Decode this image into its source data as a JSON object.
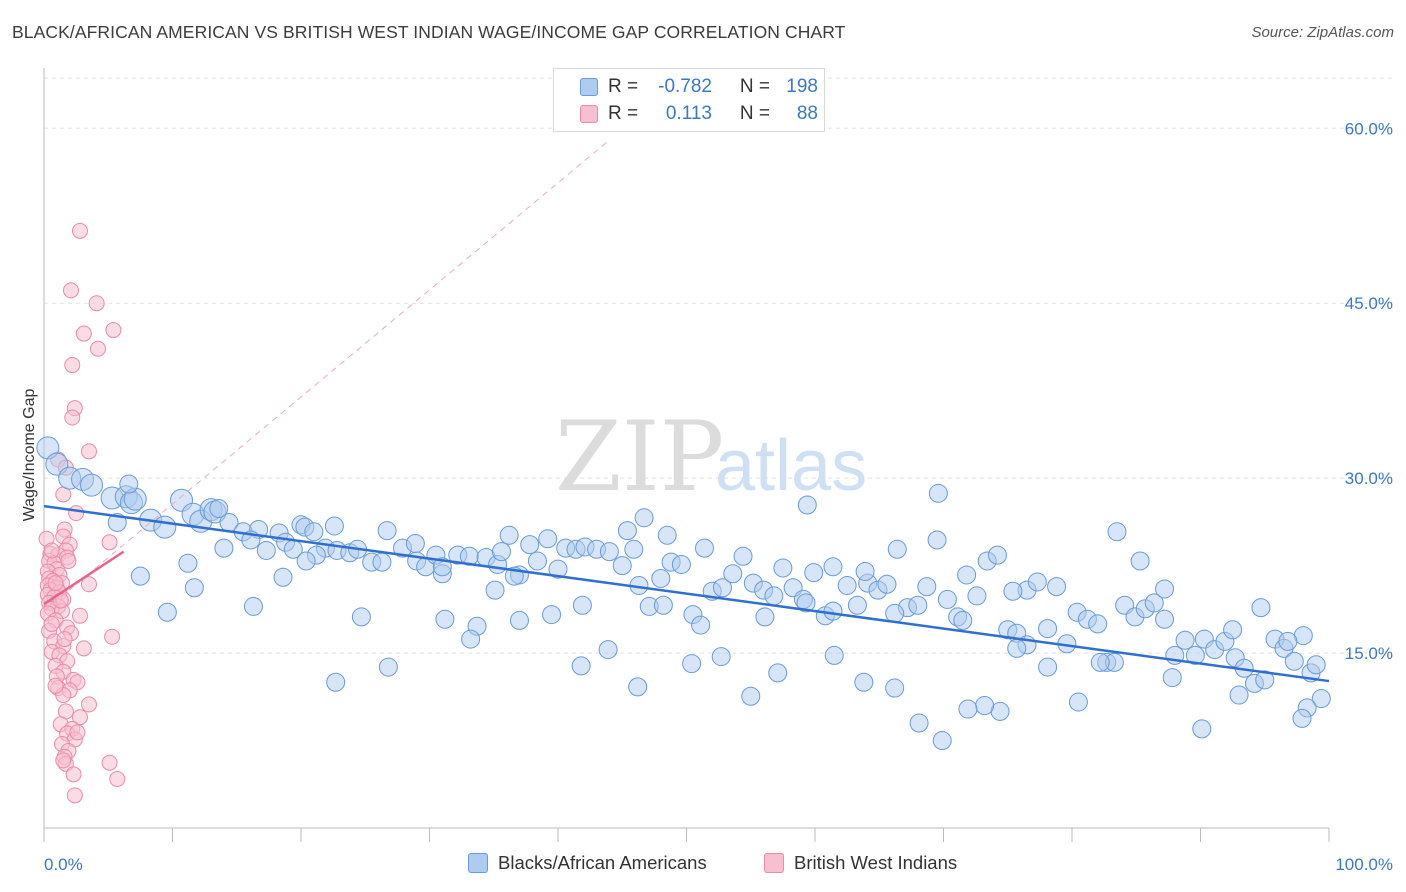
{
  "header": {
    "title": "BLACK/AFRICAN AMERICAN VS BRITISH WEST INDIAN WAGE/INCOME GAP CORRELATION CHART",
    "source": "Source: ZipAtlas.com"
  },
  "watermark": {
    "zip": "ZIP",
    "atlas": "atlas"
  },
  "colors": {
    "blue_fill": "#aecbf0",
    "blue_stroke": "#6a9ad8",
    "blue_line": "#2f6fce",
    "pink_fill": "#f7bfd0",
    "pink_stroke": "#ec8aa8",
    "pink_line": "#e8628b",
    "axis_text": "#3b78c4"
  },
  "legend": {
    "rows": [
      {
        "r_label": "R =",
        "r_value": "-0.782",
        "n_label": "N =",
        "n_value": "198"
      },
      {
        "r_label": "R =",
        "r_value": "0.113",
        "n_label": "N =",
        "n_value": "88"
      }
    ]
  },
  "bottom_legend": {
    "series1": "Blacks/African Americans",
    "series2": "British West Indians"
  },
  "chart_data": {
    "type": "scatter",
    "xlabel": "",
    "ylabel": "Wage/Income Gap",
    "xlim": [
      0,
      100
    ],
    "ylim": [
      0,
      65
    ],
    "x_tick_labels": [
      "0.0%",
      "100.0%"
    ],
    "y_ticks": [
      15,
      30,
      45,
      60
    ],
    "y_tick_labels": [
      "15.0%",
      "30.0%",
      "45.0%",
      "60.0%"
    ],
    "grid": true,
    "legend_position": "top-center",
    "series": [
      {
        "name": "Blacks/African Americans",
        "r": -0.782,
        "n": 198,
        "trend": {
          "x": [
            0,
            100
          ],
          "y": [
            27.6,
            12.6
          ]
        },
        "points": [
          [
            0.3,
            32.6
          ],
          [
            1.0,
            31.2
          ],
          [
            2.0,
            30.0
          ],
          [
            3.0,
            29.9
          ],
          [
            3.7,
            29.4
          ],
          [
            5.3,
            28.3
          ],
          [
            6.4,
            28.4
          ],
          [
            8.3,
            26.4
          ],
          [
            6.8,
            27.9
          ],
          [
            7.1,
            28.2
          ],
          [
            9.4,
            25.8
          ],
          [
            10.7,
            28.1
          ],
          [
            11.6,
            26.9
          ],
          [
            12.2,
            26.3
          ],
          [
            13.0,
            27.3
          ],
          [
            13.3,
            27.1
          ],
          [
            14.4,
            26.2
          ],
          [
            15.5,
            25.4
          ],
          [
            16.7,
            25.6
          ],
          [
            17.3,
            23.8
          ],
          [
            18.3,
            25.3
          ],
          [
            18.8,
            24.5
          ],
          [
            19.4,
            23.9
          ],
          [
            20.0,
            26.0
          ],
          [
            20.3,
            25.8
          ],
          [
            21.0,
            25.4
          ],
          [
            21.9,
            24.0
          ],
          [
            22.8,
            23.8
          ],
          [
            23.8,
            23.6
          ],
          [
            24.4,
            23.9
          ],
          [
            25.5,
            22.8
          ],
          [
            26.3,
            22.8
          ],
          [
            27.9,
            24.0
          ],
          [
            29.0,
            22.9
          ],
          [
            29.7,
            22.4
          ],
          [
            30.5,
            23.4
          ],
          [
            31.0,
            21.8
          ],
          [
            32.2,
            23.4
          ],
          [
            33.1,
            23.3
          ],
          [
            34.4,
            23.2
          ],
          [
            35.3,
            22.6
          ],
          [
            35.6,
            23.7
          ],
          [
            36.2,
            25.1
          ],
          [
            37.0,
            21.7
          ],
          [
            37.8,
            24.3
          ],
          [
            38.4,
            22.9
          ],
          [
            39.2,
            24.8
          ],
          [
            40.0,
            22.2
          ],
          [
            40.6,
            24.0
          ],
          [
            41.4,
            23.9
          ],
          [
            42.1,
            24.1
          ],
          [
            43.0,
            23.9
          ],
          [
            44.0,
            23.7
          ],
          [
            45.0,
            22.5
          ],
          [
            45.4,
            25.5
          ],
          [
            45.9,
            23.9
          ],
          [
            47.1,
            19.0
          ],
          [
            48.0,
            21.4
          ],
          [
            48.8,
            22.8
          ],
          [
            49.6,
            22.6
          ],
          [
            50.5,
            18.3
          ],
          [
            51.4,
            24.0
          ],
          [
            52.0,
            20.3
          ],
          [
            52.8,
            20.6
          ],
          [
            53.6,
            21.8
          ],
          [
            54.4,
            23.3
          ],
          [
            55.2,
            21.0
          ],
          [
            56.0,
            20.4
          ],
          [
            56.8,
            19.9
          ],
          [
            57.5,
            22.3
          ],
          [
            58.3,
            20.6
          ],
          [
            59.1,
            19.6
          ],
          [
            59.9,
            21.9
          ],
          [
            60.8,
            18.2
          ],
          [
            61.4,
            22.4
          ],
          [
            62.5,
            20.8
          ],
          [
            63.3,
            19.1
          ],
          [
            64.1,
            21.0
          ],
          [
            64.9,
            20.4
          ],
          [
            65.6,
            20.9
          ],
          [
            66.4,
            23.9
          ],
          [
            67.2,
            18.9
          ],
          [
            68.0,
            19.1
          ],
          [
            68.7,
            20.7
          ],
          [
            69.5,
            24.7
          ],
          [
            70.3,
            19.6
          ],
          [
            71.1,
            18.1
          ],
          [
            71.8,
            21.7
          ],
          [
            72.6,
            19.9
          ],
          [
            73.4,
            22.9
          ],
          [
            74.2,
            23.4
          ],
          [
            75.0,
            17.0
          ],
          [
            75.7,
            16.7
          ],
          [
            76.5,
            20.4
          ],
          [
            77.3,
            21.1
          ],
          [
            78.1,
            17.1
          ],
          [
            78.8,
            20.7
          ],
          [
            79.6,
            15.8
          ],
          [
            80.4,
            18.5
          ],
          [
            81.2,
            17.9
          ],
          [
            82.0,
            17.5
          ],
          [
            82.7,
            14.2
          ],
          [
            83.3,
            14.2
          ],
          [
            84.1,
            19.1
          ],
          [
            84.9,
            18.1
          ],
          [
            85.7,
            18.8
          ],
          [
            86.4,
            19.3
          ],
          [
            87.2,
            17.9
          ],
          [
            88.0,
            14.8
          ],
          [
            88.8,
            16.1
          ],
          [
            89.6,
            14.8
          ],
          [
            90.3,
            16.2
          ],
          [
            91.1,
            15.3
          ],
          [
            91.9,
            16.0
          ],
          [
            92.7,
            14.6
          ],
          [
            93.4,
            13.7
          ],
          [
            94.2,
            12.4
          ],
          [
            95.0,
            12.7
          ],
          [
            95.8,
            16.2
          ],
          [
            96.5,
            15.4
          ],
          [
            97.3,
            14.3
          ],
          [
            98.0,
            16.5
          ],
          [
            98.6,
            13.3
          ],
          [
            99.0,
            14.0
          ],
          [
            99.4,
            11.1
          ],
          [
            5.7,
            26.2
          ],
          [
            11.2,
            22.7
          ],
          [
            16.1,
            24.7
          ],
          [
            21.2,
            23.4
          ],
          [
            26.7,
            25.5
          ],
          [
            31.0,
            22.4
          ],
          [
            36.6,
            21.6
          ],
          [
            41.9,
            19.1
          ],
          [
            46.3,
            20.8
          ],
          [
            51.1,
            17.4
          ],
          [
            56.1,
            18.1
          ],
          [
            61.4,
            18.6
          ],
          [
            66.2,
            18.4
          ],
          [
            71.5,
            17.8
          ],
          [
            76.5,
            15.7
          ],
          [
            82.2,
            14.2
          ],
          [
            87.8,
            12.9
          ],
          [
            93.0,
            11.4
          ],
          [
            98.3,
            10.3
          ],
          [
            6.6,
            29.5
          ],
          [
            13.6,
            27.4
          ],
          [
            22.6,
            25.9
          ],
          [
            33.7,
            17.3
          ],
          [
            46.7,
            26.6
          ],
          [
            48.5,
            25.1
          ],
          [
            59.4,
            27.7
          ],
          [
            63.9,
            22.0
          ],
          [
            69.6,
            28.7
          ],
          [
            75.4,
            20.3
          ],
          [
            83.5,
            25.4
          ],
          [
            85.3,
            22.9
          ],
          [
            92.5,
            17.0
          ],
          [
            94.7,
            18.9
          ],
          [
            96.8,
            16.0
          ],
          [
            97.9,
            9.4
          ],
          [
            90.1,
            8.5
          ],
          [
            87.2,
            20.5
          ],
          [
            80.5,
            10.8
          ],
          [
            78.1,
            13.8
          ],
          [
            75.7,
            15.4
          ],
          [
            74.4,
            10.0
          ],
          [
            73.2,
            10.5
          ],
          [
            71.9,
            10.2
          ],
          [
            69.9,
            7.5
          ],
          [
            68.1,
            9.0
          ],
          [
            66.2,
            12.0
          ],
          [
            63.8,
            12.5
          ],
          [
            61.5,
            14.8
          ],
          [
            59.3,
            19.3
          ],
          [
            57.1,
            13.3
          ],
          [
            55.0,
            11.3
          ],
          [
            52.7,
            14.7
          ],
          [
            50.4,
            14.1
          ],
          [
            48.2,
            19.1
          ],
          [
            46.2,
            12.1
          ],
          [
            43.9,
            15.3
          ],
          [
            41.8,
            13.9
          ],
          [
            39.5,
            18.3
          ],
          [
            37.0,
            17.8
          ],
          [
            35.1,
            20.4
          ],
          [
            33.2,
            16.2
          ],
          [
            31.2,
            17.9
          ],
          [
            28.9,
            24.4
          ],
          [
            26.8,
            13.8
          ],
          [
            24.7,
            18.1
          ],
          [
            22.7,
            12.5
          ],
          [
            20.4,
            22.9
          ],
          [
            18.6,
            21.5
          ],
          [
            16.3,
            19.0
          ],
          [
            14.0,
            24.0
          ],
          [
            11.7,
            20.6
          ],
          [
            9.6,
            18.5
          ],
          [
            7.5,
            21.6
          ]
        ]
      },
      {
        "name": "British West Indians",
        "r": 0.113,
        "n": 88,
        "trend": {
          "x": [
            0,
            6.2
          ],
          "y": [
            19.2,
            23.7
          ]
        },
        "points": [
          [
            2.8,
            51.2
          ],
          [
            2.1,
            46.1
          ],
          [
            4.1,
            45.0
          ],
          [
            3.1,
            42.4
          ],
          [
            5.4,
            42.7
          ],
          [
            4.2,
            41.1
          ],
          [
            2.2,
            39.7
          ],
          [
            2.4,
            36.0
          ],
          [
            2.2,
            35.2
          ],
          [
            3.5,
            32.3
          ],
          [
            1.1,
            31.6
          ],
          [
            1.7,
            30.9
          ],
          [
            1.5,
            28.6
          ],
          [
            2.5,
            27.0
          ],
          [
            1.6,
            25.6
          ],
          [
            1.5,
            25.0
          ],
          [
            0.2,
            24.8
          ],
          [
            2.0,
            24.3
          ],
          [
            5.1,
            24.5
          ],
          [
            1.7,
            23.8
          ],
          [
            0.5,
            23.5
          ],
          [
            1.1,
            23.4
          ],
          [
            1.8,
            23.2
          ],
          [
            0.4,
            22.9
          ],
          [
            0.8,
            22.7
          ],
          [
            1.0,
            22.2
          ],
          [
            0.3,
            22.0
          ],
          [
            1.2,
            21.7
          ],
          [
            0.4,
            21.4
          ],
          [
            0.7,
            21.2
          ],
          [
            1.4,
            21.0
          ],
          [
            0.3,
            20.8
          ],
          [
            1.0,
            20.6
          ],
          [
            3.5,
            20.9
          ],
          [
            0.5,
            20.4
          ],
          [
            1.2,
            20.2
          ],
          [
            0.3,
            20.0
          ],
          [
            0.8,
            19.8
          ],
          [
            1.5,
            19.6
          ],
          [
            0.4,
            19.3
          ],
          [
            1.1,
            19.0
          ],
          [
            0.6,
            18.8
          ],
          [
            0.3,
            18.4
          ],
          [
            1.4,
            18.6
          ],
          [
            2.8,
            18.2
          ],
          [
            0.9,
            17.8
          ],
          [
            1.8,
            17.2
          ],
          [
            0.4,
            16.9
          ],
          [
            2.1,
            16.7
          ],
          [
            5.3,
            16.4
          ],
          [
            0.8,
            16.0
          ],
          [
            1.5,
            15.6
          ],
          [
            3.1,
            15.4
          ],
          [
            0.6,
            15.1
          ],
          [
            1.2,
            14.8
          ],
          [
            1.8,
            14.3
          ],
          [
            0.9,
            13.9
          ],
          [
            1.5,
            13.4
          ],
          [
            1.0,
            13.0
          ],
          [
            2.3,
            12.7
          ],
          [
            2.6,
            12.5
          ],
          [
            1.1,
            12.0
          ],
          [
            2.0,
            11.8
          ],
          [
            1.5,
            11.4
          ],
          [
            3.5,
            10.6
          ],
          [
            1.7,
            10.0
          ],
          [
            2.8,
            9.5
          ],
          [
            1.3,
            8.9
          ],
          [
            2.2,
            8.5
          ],
          [
            1.8,
            8.1
          ],
          [
            2.4,
            7.6
          ],
          [
            1.4,
            7.2
          ],
          [
            1.9,
            6.6
          ],
          [
            1.6,
            6.1
          ],
          [
            1.7,
            5.5
          ],
          [
            5.1,
            5.6
          ],
          [
            2.3,
            4.6
          ],
          [
            5.7,
            4.2
          ],
          [
            2.4,
            2.8
          ],
          [
            1.5,
            5.8
          ],
          [
            0.9,
            12.2
          ],
          [
            2.6,
            8.2
          ],
          [
            0.6,
            23.8
          ],
          [
            1.9,
            22.9
          ],
          [
            0.9,
            21.0
          ],
          [
            1.3,
            19.5
          ],
          [
            0.6,
            17.5
          ],
          [
            1.6,
            16.2
          ]
        ]
      }
    ]
  }
}
